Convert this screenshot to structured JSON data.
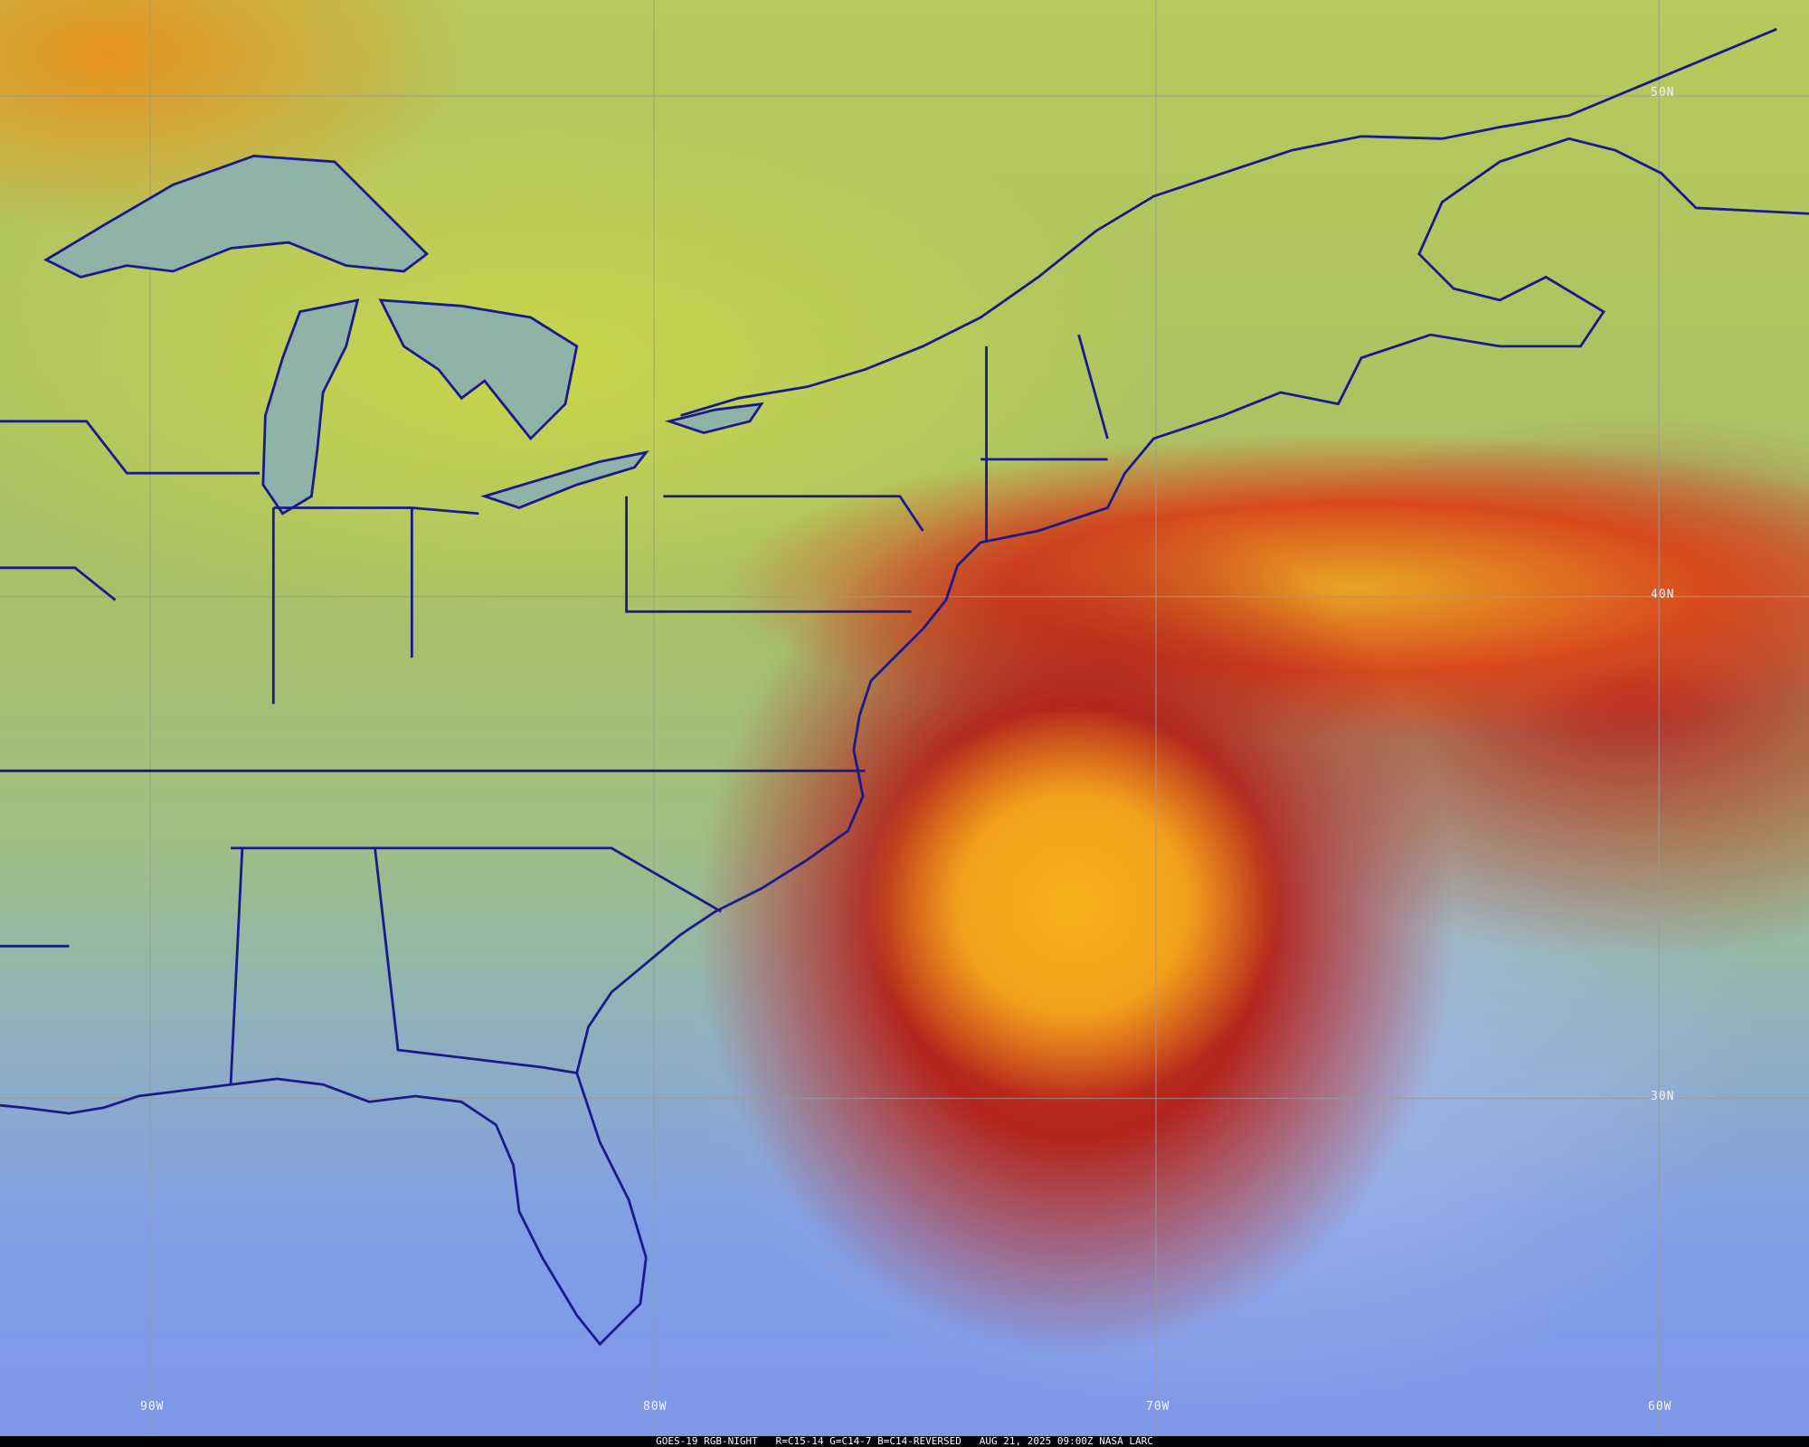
{
  "image": {
    "description_type": "satellite-rgb-night-composite",
    "caption": {
      "satellite": "GOES-19 RGB-NIGHT",
      "channels": "R=C15-14 G=C14-7 B=C14-REVERSED",
      "datetime": "AUG 21, 2025 09:00Z",
      "source": "NASA LARC"
    },
    "latitude_labels": [
      "50N",
      "40N",
      "30N"
    ],
    "longitude_labels": [
      "90W",
      "80W",
      "70W",
      "60W"
    ],
    "colors": {
      "border": "#1a1a8c",
      "grid": "#9a9a9a",
      "storm_core": "#f2a01c",
      "ocean_clear": "#7d97e9"
    }
  }
}
